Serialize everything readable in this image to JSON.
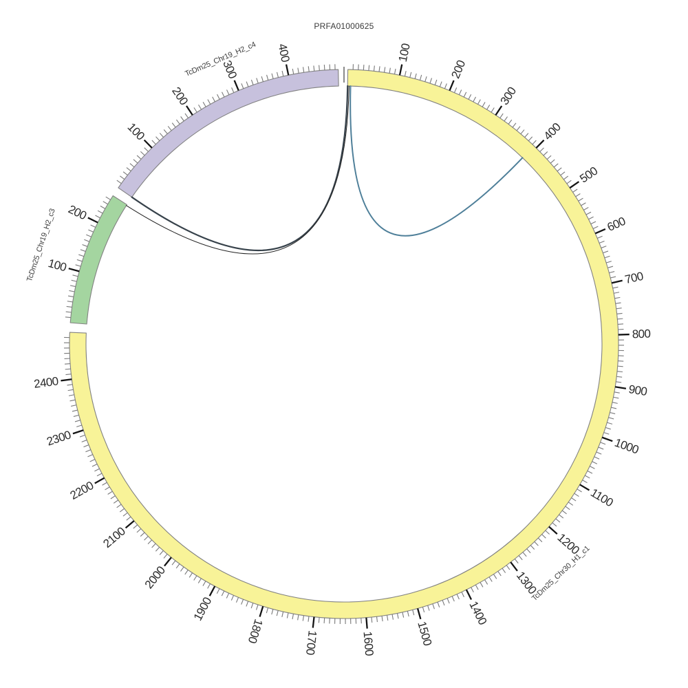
{
  "title": "PRFA01000625",
  "chart_data": {
    "type": "circos",
    "title": "PRFA01000625",
    "description": "Circular genome alignment plot: three reference segments with base-pair scales and link ribbons converging at the contig origin (top gap).",
    "segments": [
      {
        "name": "TcDm25_Chr30_H1_c1",
        "length": 2490,
        "color": "#f8f398",
        "minor_tick_interval": 10,
        "major_tick_interval": 100,
        "major_tick_labels": [
          "100",
          "200",
          "300",
          "400",
          "500",
          "600",
          "700",
          "800",
          "900",
          "1000",
          "1100",
          "1200",
          "1300",
          "1400",
          "1500",
          "1600",
          "1700",
          "1800",
          "1900",
          "2000",
          "2100",
          "2200",
          "2300",
          "2400"
        ]
      },
      {
        "name": "TcDm25_Chr19_H2_c3",
        "length": 259,
        "color": "#a4d5a0",
        "minor_tick_interval": 10,
        "major_tick_interval": 100,
        "major_tick_labels": [
          "100",
          "200"
        ]
      },
      {
        "name": "TcDm25_Chr19_H2_c4",
        "length": 496,
        "color": "#c7c1dd",
        "minor_tick_interval": 10,
        "major_tick_interval": 100,
        "major_tick_labels": [
          "100",
          "200",
          "300",
          "400"
        ]
      }
    ],
    "links": [
      {
        "id": "link-origin-to-c4-start",
        "from": {
          "segment": "TcDm25_Chr30_H1_c1",
          "pos": 0
        },
        "to": {
          "segment": "TcDm25_Chr19_H2_c4",
          "pos": 0
        },
        "color": "#37424b",
        "width": 2.2
      },
      {
        "id": "link-origin-to-c3-end",
        "from": {
          "segment": "TcDm25_Chr30_H1_c1",
          "pos": 3
        },
        "to": {
          "segment": "TcDm25_Chr19_H2_c3",
          "pos": 257
        },
        "color": "#202020",
        "width": 1
      },
      {
        "id": "link-origin-to-c1-400",
        "from": {
          "segment": "TcDm25_Chr30_H1_c1",
          "pos": 6
        },
        "to": {
          "segment": "TcDm25_Chr30_H1_c1",
          "pos": 394
        },
        "color": "#4e7f99",
        "width": 2
      }
    ],
    "layout_hints": {
      "center": [
        500,
        500
      ],
      "r_outer": 399,
      "r_inner": 375,
      "gap_deg": 2.0,
      "first_segment_start_deg": 0.8,
      "minor_tick_len": 8,
      "major_tick_len": 16,
      "tick_label_radius": 419,
      "tick_label_font_px": 17,
      "label_flip_deg": 199,
      "segment_label_font_px": 11,
      "segment_label_hints": [
        {
          "segment": "TcDm25_Chr30_H1_c1",
          "pos": 1245,
          "radius": 459
        },
        {
          "segment": "TcDm25_Chr19_H2_c3",
          "pos": 125,
          "radius": 463
        },
        {
          "segment": "TcDm25_Chr19_H2_c4",
          "pos": 292,
          "radius": 451
        }
      ],
      "origin_marker": {
        "deg": 0.0,
        "r0": 380,
        "r1": 403,
        "color": "#8a8a8a",
        "width": 2
      }
    },
    "colors": {
      "background": "#ffffff",
      "band_stroke": "#828282",
      "minor_tick": "#787878",
      "major_tick": "#141414",
      "tick_label": "#2b2b2b",
      "segment_label": "#3c3c3c",
      "title": "#3a3a3a"
    }
  }
}
